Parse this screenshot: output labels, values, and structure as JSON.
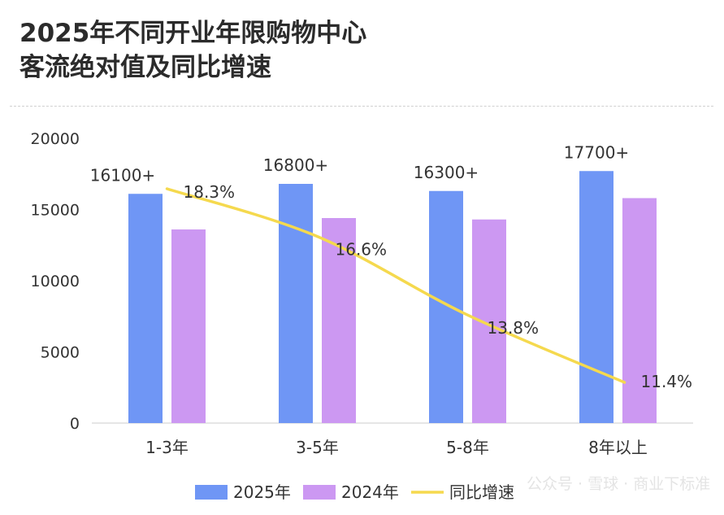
{
  "chart_data": {
    "type": "bar",
    "title_line1": "2025年不同开业年限购物中心",
    "title_line2": "客流绝对值及同比增速",
    "categories": [
      "1-3年",
      "3-5年",
      "5-8年",
      "8年以上"
    ],
    "series": [
      {
        "name": "2025年",
        "values": [
          16100,
          16800,
          16300,
          17700
        ],
        "color": "#6f96f5"
      },
      {
        "name": "2024年",
        "values": [
          13600,
          14400,
          14300,
          15800
        ],
        "color": "#cc98f2"
      }
    ],
    "bar_labels": [
      "16100+",
      "16800+",
      "16300+",
      "17700+"
    ],
    "line_series": {
      "name": "同比增速",
      "values": [
        18.3,
        16.6,
        13.8,
        11.4
      ],
      "labels": [
        "18.3%",
        "16.6%",
        "13.8%",
        "11.4%"
      ],
      "color": "#f5d94e"
    },
    "y_ticks": [
      "0",
      "5000",
      "10000",
      "15000",
      "20000"
    ],
    "ylim": [
      0,
      20000
    ],
    "legend_position": "bottom"
  },
  "watermark": "公众号 · 雪球 · 商业下标准"
}
